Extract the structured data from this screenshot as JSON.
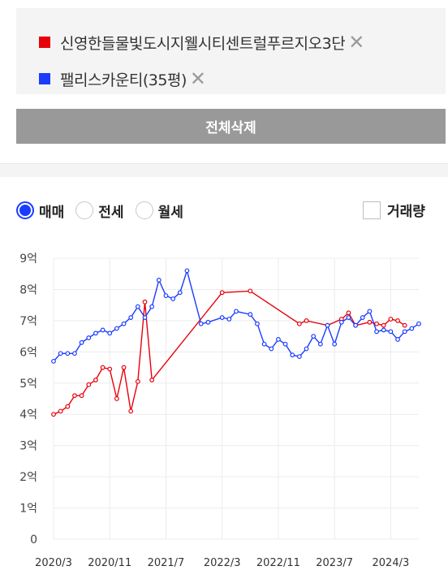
{
  "compare": {
    "items": [
      {
        "name": "신영한들물빛도시지웰시티센트럴푸르지오3단",
        "color": "#e8000b"
      },
      {
        "name": "팰리스카운티(35평)",
        "color": "#1a3cff"
      }
    ],
    "close_glyph": "✕"
  },
  "delete_all_label": "전체삭제",
  "trade_types": [
    {
      "label": "매매",
      "checked": true
    },
    {
      "label": "전세",
      "checked": false
    },
    {
      "label": "월세",
      "checked": false
    }
  ],
  "volume_label": "거래량",
  "chart_data": {
    "type": "line",
    "y_ticks": [
      "0",
      "1억",
      "2억",
      "3억",
      "4억",
      "5억",
      "6억",
      "7억",
      "8억",
      "9억"
    ],
    "ylim": [
      0,
      9
    ],
    "x_ticks": [
      "2020/3",
      "2020/11",
      "2021/7",
      "2022/3",
      "2022/11",
      "2023/7",
      "2024/3"
    ],
    "xlim": [
      "2020-03",
      "2024-07"
    ],
    "series": [
      {
        "color": "#e8000b",
        "points": [
          [
            "2020-03",
            4.0
          ],
          [
            "2020-04",
            4.1
          ],
          [
            "2020-05",
            4.25
          ],
          [
            "2020-06",
            4.6
          ],
          [
            "2020-07",
            4.6
          ],
          [
            "2020-08",
            4.95
          ],
          [
            "2020-09",
            5.1
          ],
          [
            "2020-10",
            5.5
          ],
          [
            "2020-11",
            5.45
          ],
          [
            "2020-12",
            4.5
          ],
          [
            "2021-01",
            5.5
          ],
          [
            "2021-02",
            4.1
          ],
          [
            "2021-03",
            5.05
          ],
          [
            "2021-04",
            7.6
          ],
          [
            "2021-05",
            5.1
          ],
          [
            "2022-03",
            7.9
          ],
          [
            "2022-07",
            7.95
          ],
          [
            "2023-02",
            6.9
          ],
          [
            "2023-03",
            7.0
          ],
          [
            "2023-06",
            6.85
          ],
          [
            "2023-08",
            7.05
          ],
          [
            "2023-09",
            7.25
          ],
          [
            "2023-10",
            6.85
          ],
          [
            "2023-12",
            6.95
          ],
          [
            "2024-01",
            6.9
          ],
          [
            "2024-02",
            6.85
          ],
          [
            "2024-03",
            7.05
          ],
          [
            "2024-04",
            7.0
          ],
          [
            "2024-05",
            6.85
          ]
        ]
      },
      {
        "color": "#1a3cff",
        "points": [
          [
            "2020-03",
            5.7
          ],
          [
            "2020-04",
            5.95
          ],
          [
            "2020-05",
            5.95
          ],
          [
            "2020-06",
            5.95
          ],
          [
            "2020-07",
            6.3
          ],
          [
            "2020-08",
            6.45
          ],
          [
            "2020-09",
            6.6
          ],
          [
            "2020-10",
            6.7
          ],
          [
            "2020-11",
            6.6
          ],
          [
            "2020-12",
            6.75
          ],
          [
            "2021-01",
            6.9
          ],
          [
            "2021-02",
            7.1
          ],
          [
            "2021-03",
            7.45
          ],
          [
            "2021-04",
            7.1
          ],
          [
            "2021-05",
            7.45
          ],
          [
            "2021-06",
            8.3
          ],
          [
            "2021-07",
            7.8
          ],
          [
            "2021-08",
            7.7
          ],
          [
            "2021-09",
            7.9
          ],
          [
            "2021-10",
            8.6
          ],
          [
            "2021-12",
            6.9
          ],
          [
            "2022-01",
            6.95
          ],
          [
            "2022-03",
            7.1
          ],
          [
            "2022-04",
            7.05
          ],
          [
            "2022-05",
            7.3
          ],
          [
            "2022-07",
            7.2
          ],
          [
            "2022-08",
            6.9
          ],
          [
            "2022-09",
            6.25
          ],
          [
            "2022-10",
            6.1
          ],
          [
            "2022-11",
            6.4
          ],
          [
            "2022-12",
            6.25
          ],
          [
            "2023-01",
            5.9
          ],
          [
            "2023-02",
            5.85
          ],
          [
            "2023-03",
            6.1
          ],
          [
            "2023-04",
            6.5
          ],
          [
            "2023-05",
            6.25
          ],
          [
            "2023-06",
            6.85
          ],
          [
            "2023-07",
            6.25
          ],
          [
            "2023-08",
            6.95
          ],
          [
            "2023-09",
            7.1
          ],
          [
            "2023-10",
            6.85
          ],
          [
            "2023-11",
            7.1
          ],
          [
            "2023-12",
            7.3
          ],
          [
            "2024-01",
            6.65
          ],
          [
            "2024-02",
            6.7
          ],
          [
            "2024-03",
            6.65
          ],
          [
            "2024-04",
            6.4
          ],
          [
            "2024-05",
            6.65
          ],
          [
            "2024-06",
            6.75
          ],
          [
            "2024-07",
            6.9
          ]
        ]
      }
    ]
  }
}
